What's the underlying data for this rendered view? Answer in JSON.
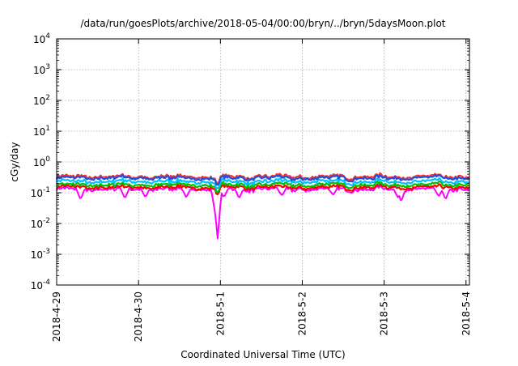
{
  "chart_data": {
    "type": "line",
    "title": "/data/run/goesPlots/archive/2018-05-04/00:00/bryn/../bryn/5daysMoon.plot",
    "xlabel": "Coordinated Universal Time (UTC)",
    "ylabel": "cGy/day",
    "yscale": "log",
    "ylim": [
      0.0001,
      10000
    ],
    "x_range": [
      "2018-04-29",
      "2018-05-04T01:00"
    ],
    "x_ticks": [
      "2018-4-29",
      "2018-4-30",
      "2018-5-1",
      "2018-5-2",
      "2018-5-3",
      "2018-5-4"
    ],
    "y_tick_mantissa": "10",
    "y_tick_exponents": [
      "-4",
      "-3",
      "-2",
      "-1",
      "0",
      "1",
      "2",
      "3",
      "4"
    ],
    "grid": true,
    "legend": "none",
    "series": [
      {
        "color": "#ff00ff",
        "base": 0.13,
        "spikes": [
          {
            "x": "2018-04-29T07:00",
            "y": 0.06
          },
          {
            "x": "2018-04-29T20:00",
            "y": 0.065
          },
          {
            "x": "2018-04-30T02:00",
            "y": 0.07
          },
          {
            "x": "2018-04-30T14:00",
            "y": 0.07
          },
          {
            "x": "2018-04-30T22:30",
            "y": 0.02
          },
          {
            "x": "2018-04-30T23:10",
            "y": 0.003
          },
          {
            "x": "2018-05-01T01:00",
            "y": 0.07
          },
          {
            "x": "2018-05-01T05:30",
            "y": 0.065
          },
          {
            "x": "2018-05-01T18:00",
            "y": 0.08
          },
          {
            "x": "2018-05-02T09:00",
            "y": 0.085
          },
          {
            "x": "2018-05-03T04:00",
            "y": 0.07
          },
          {
            "x": "2018-05-03T05:00",
            "y": 0.05
          },
          {
            "x": "2018-05-03T16:00",
            "y": 0.075
          },
          {
            "x": "2018-05-03T18:00",
            "y": 0.06
          }
        ]
      },
      {
        "color": "#ff0000",
        "base": 0.15,
        "spikes": []
      },
      {
        "color": "#00c000",
        "base": 0.18,
        "spikes": []
      },
      {
        "color": "#00c0ff",
        "base": 0.23,
        "spikes": []
      },
      {
        "color": "#ff3030",
        "base": 0.33,
        "spikes": []
      },
      {
        "color": "#2050e0",
        "base": 0.3,
        "spikes": []
      }
    ]
  }
}
